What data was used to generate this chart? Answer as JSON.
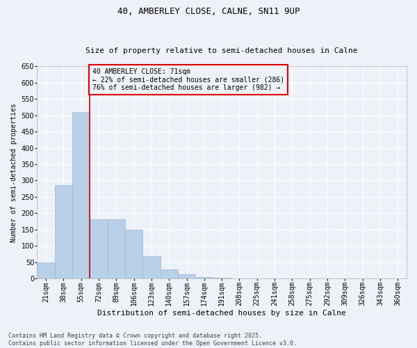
{
  "title": "40, AMBERLEY CLOSE, CALNE, SN11 9UP",
  "subtitle": "Size of property relative to semi-detached houses in Calne",
  "xlabel": "Distribution of semi-detached houses by size in Calne",
  "ylabel": "Number of semi-detached properties",
  "categories": [
    "21sqm",
    "38sqm",
    "55sqm",
    "72sqm",
    "89sqm",
    "106sqm",
    "123sqm",
    "140sqm",
    "157sqm",
    "174sqm",
    "191sqm",
    "208sqm",
    "225sqm",
    "241sqm",
    "258sqm",
    "275sqm",
    "292sqm",
    "309sqm",
    "326sqm",
    "343sqm",
    "360sqm"
  ],
  "values": [
    50,
    285,
    510,
    182,
    182,
    150,
    68,
    27,
    12,
    4,
    2,
    0,
    0,
    0,
    0,
    0,
    0,
    0,
    0,
    0,
    0
  ],
  "bar_color": "#b8d0e8",
  "bar_edge_color": "#9ab8d4",
  "annotation_text": "40 AMBERLEY CLOSE: 71sqm\n← 22% of semi-detached houses are smaller (286)\n76% of semi-detached houses are larger (982) →",
  "ylim": [
    0,
    650
  ],
  "yticks": [
    0,
    50,
    100,
    150,
    200,
    250,
    300,
    350,
    400,
    450,
    500,
    550,
    600,
    650
  ],
  "footer_line1": "Contains HM Land Registry data © Crown copyright and database right 2025.",
  "footer_line2": "Contains public sector information licensed under the Open Government Licence v3.0.",
  "bg_color": "#eef2f8",
  "grid_color": "#ffffff",
  "annotation_box_color": "#dd0000",
  "red_line_color": "#cc0000",
  "title_fontsize": 9,
  "subtitle_fontsize": 8,
  "xlabel_fontsize": 8,
  "ylabel_fontsize": 7,
  "tick_fontsize": 7,
  "footer_fontsize": 6,
  "annotation_fontsize": 7
}
